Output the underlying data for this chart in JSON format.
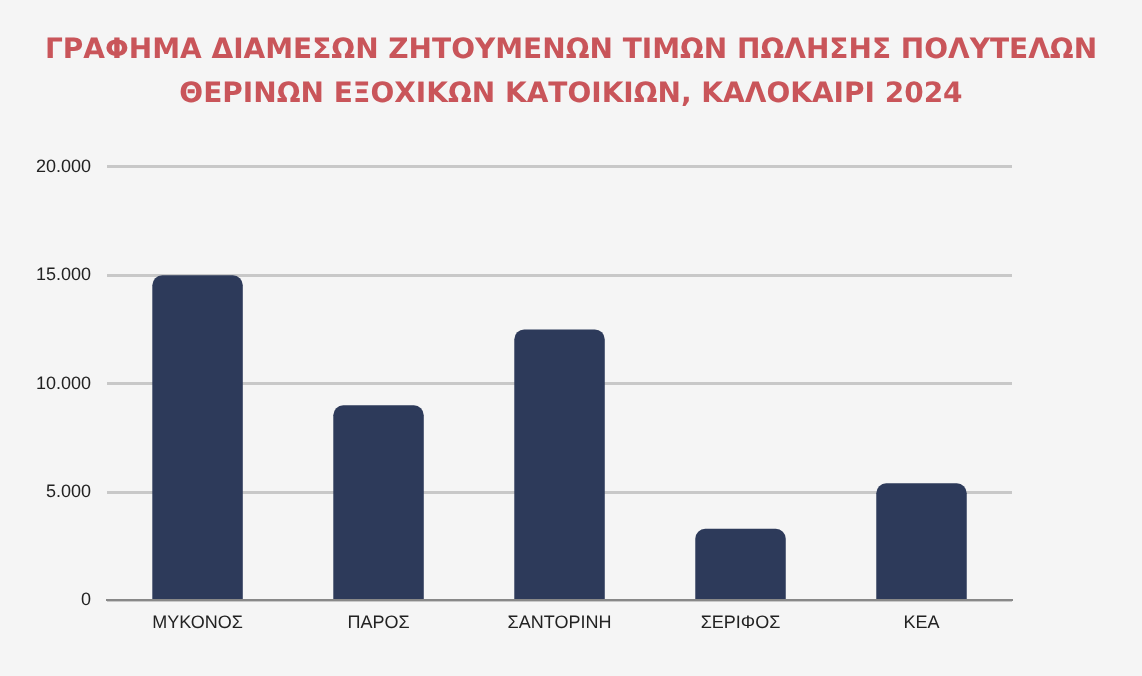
{
  "chart_data": {
    "type": "bar",
    "title": "ΓΡΑΦΗΜΑ ΔΙΑΜΕΣΩΝ ΖΗΤΟΥΜΕΝΩΝ ΤΙΜΩΝ ΠΩΛΗΣΗΣ ΠΟΛΥΤΕΛΩΝ ΘΕΡΙΝΩΝ ΕΞΟΧΙΚΩΝ ΚΑΤΟΙΚΙΩΝ, ΚΑΛΟΚΑΙΡΙ 2024",
    "categories": [
      "ΜΥΚΟΝΟΣ",
      "ΠΑΡΟΣ",
      "ΣΑΝΤΟΡΙΝΗ",
      "ΣΕΡΙΦΟΣ",
      "ΚΕΑ"
    ],
    "values": [
      15000,
      9000,
      12500,
      3300,
      5400
    ],
    "color": "#2d3a5a",
    "ylim": [
      0,
      20000
    ],
    "yticks": [
      0,
      {
        "value": 5000,
        "label": "5.000"
      },
      {
        "value": 10000,
        "label": "10.000"
      },
      {
        "value": 15000,
        "label": "15.000"
      },
      {
        "value": 20000,
        "label": "20.000"
      }
    ],
    "grid": "y",
    "legend": false
  }
}
